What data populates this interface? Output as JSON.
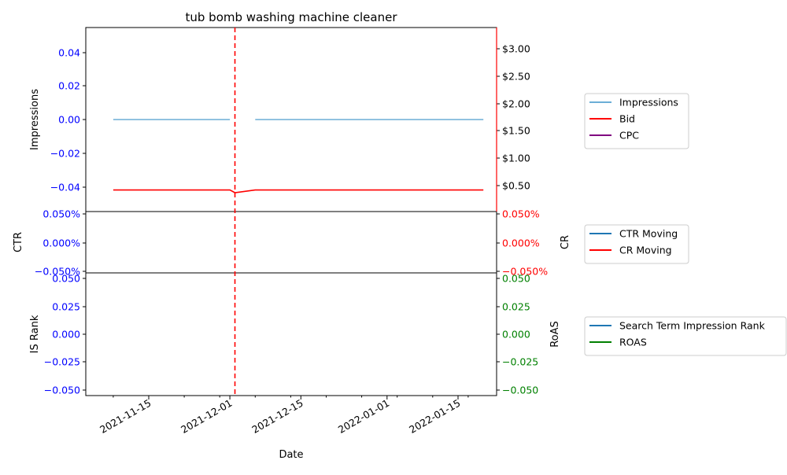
{
  "chart_data": {
    "type": "line",
    "title": "tub bomb washing machine cleaner",
    "xlabel": "Date",
    "x_ticks": [
      "2021-11-15",
      "2021-12-01",
      "2021-12-15",
      "2022-01-01",
      "2022-01-15"
    ],
    "vline_date": "2021-12-02",
    "colors": {
      "left_axis": "#0000ff",
      "cr_axis": "#ff0000",
      "roas_axis": "#008000",
      "impressions": "#6baed6",
      "bid": "#ff0000",
      "cpc": "#800080",
      "ctr": "#1f77b4",
      "rank": "#1f77b4",
      "roas": "#008000",
      "vline": "#ff0000"
    },
    "panels": [
      {
        "ylabel_left": "Impressions",
        "ylabel_right": "",
        "left_ticks": [
          "0.04",
          "0.02",
          "0.00",
          "−0.02",
          "−0.04"
        ],
        "right_ticks": [
          "$3.00",
          "$2.50",
          "$2.00",
          "$1.50",
          "$1.00",
          "$0.50"
        ],
        "right_tick_color": "#000000",
        "legend": [
          "Impressions",
          "Bid",
          "CPC"
        ]
      },
      {
        "ylabel_left": "CTR",
        "ylabel_right": "CR",
        "left_ticks": [
          "0.050%",
          "0.000%",
          "−0.050%"
        ],
        "right_ticks": [
          "0.050%",
          "0.000%",
          "−0.050%"
        ],
        "right_tick_color": "#ff0000",
        "legend": [
          "CTR Moving",
          "CR Moving"
        ]
      },
      {
        "ylabel_left": "IS Rank",
        "ylabel_right": "RoAS",
        "left_ticks": [
          "0.050",
          "0.025",
          "0.000",
          "−0.025",
          "−0.050"
        ],
        "right_ticks": [
          "0.050",
          "0.025",
          "0.000",
          "−0.025",
          "−0.050"
        ],
        "right_tick_color": "#008000",
        "legend": [
          "Search Term Impression Rank",
          "ROAS"
        ]
      }
    ],
    "series": [
      {
        "name": "Impressions",
        "x": [
          "2021-11-08",
          "2021-12-01"
        ],
        "y": [
          0,
          0
        ]
      },
      {
        "name": "Impressions",
        "x": [
          "2021-12-06",
          "2022-01-20"
        ],
        "y": [
          0,
          0
        ]
      },
      {
        "name": "Bid",
        "x": [
          "2021-11-08",
          "2021-12-01",
          "2021-12-02",
          "2021-12-06",
          "2022-01-20"
        ],
        "y": [
          0.42,
          0.42,
          0.37,
          0.42,
          0.42
        ]
      }
    ]
  }
}
